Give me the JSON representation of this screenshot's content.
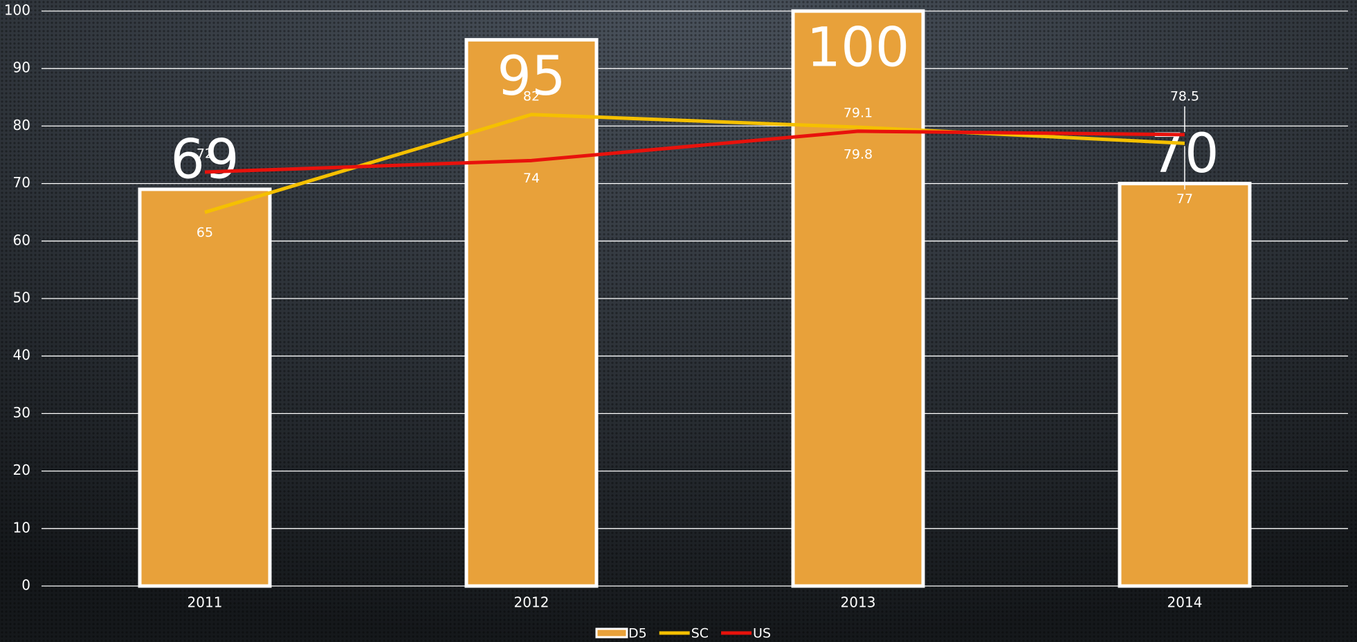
{
  "chart_data": {
    "type": "bar",
    "categories": [
      "2011",
      "2012",
      "2013",
      "2014"
    ],
    "series": [
      {
        "name": "D5",
        "type": "bar",
        "color": "#e8a13a",
        "values": [
          69,
          95,
          100,
          70
        ]
      },
      {
        "name": "SC",
        "type": "line",
        "color": "#f5c000",
        "values": [
          65,
          82,
          79.8,
          77
        ]
      },
      {
        "name": "US",
        "type": "line",
        "color": "#e8120c",
        "values": [
          72,
          74,
          79.1,
          78.5
        ]
      }
    ],
    "ylim": [
      0,
      100
    ],
    "yticks": [
      0,
      10,
      20,
      30,
      40,
      50,
      60,
      70,
      80,
      90,
      100
    ],
    "grid": true,
    "legend": "bottom"
  }
}
